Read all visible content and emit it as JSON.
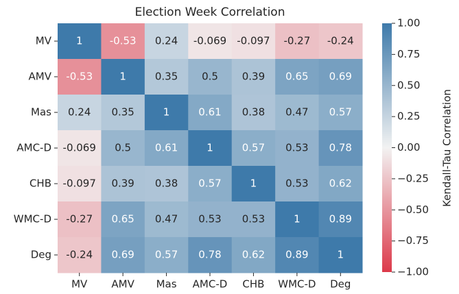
{
  "chart_data": {
    "type": "heatmap",
    "title": "Election Week Correlation",
    "x_categories": [
      "MV",
      "AMV",
      "Mas",
      "AMC-D",
      "CHB",
      "WMC-D",
      "Deg"
    ],
    "y_categories": [
      "MV",
      "AMV",
      "Mas",
      "AMC-D",
      "CHB",
      "WMC-D",
      "Deg"
    ],
    "values": [
      [
        1,
        -0.53,
        0.24,
        -0.069,
        -0.097,
        -0.27,
        -0.24
      ],
      [
        -0.53,
        1,
        0.35,
        0.5,
        0.39,
        0.65,
        0.69
      ],
      [
        0.24,
        0.35,
        1,
        0.61,
        0.38,
        0.47,
        0.57
      ],
      [
        -0.069,
        0.5,
        0.61,
        1,
        0.57,
        0.53,
        0.78
      ],
      [
        -0.097,
        0.39,
        0.38,
        0.57,
        1,
        0.53,
        0.62
      ],
      [
        -0.27,
        0.65,
        0.47,
        0.53,
        0.53,
        1,
        0.89
      ],
      [
        -0.24,
        0.69,
        0.57,
        0.78,
        0.62,
        0.89,
        1
      ]
    ],
    "colors": [
      "#dc394a",
      "#f2f2f2",
      "#3e7aaa"
    ],
    "clim": [
      -1,
      1
    ],
    "colorbar_label": "Kendall-Tau Correlation",
    "cticks": [
      {
        "value": -1,
        "label": "−1.00"
      },
      {
        "value": -0.75,
        "label": "−0.75"
      },
      {
        "value": -0.5,
        "label": "−0.50"
      },
      {
        "value": -0.25,
        "label": "−0.25"
      },
      {
        "value": 0,
        "label": "0.00"
      },
      {
        "value": 0.25,
        "label": "0.25"
      },
      {
        "value": 0.5,
        "label": "0.50"
      },
      {
        "value": 0.75,
        "label": "0.75"
      },
      {
        "value": 1,
        "label": "1.00"
      }
    ]
  }
}
